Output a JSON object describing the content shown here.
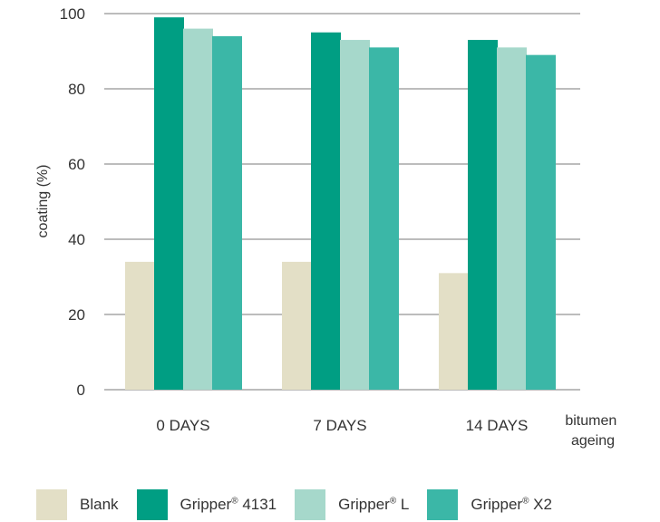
{
  "chart_data": {
    "type": "bar",
    "categories": [
      "0 DAYS",
      "7 DAYS",
      "14 DAYS"
    ],
    "series": [
      {
        "name": "Blank",
        "color": "#e3dfc6",
        "values": [
          34,
          34,
          31
        ]
      },
      {
        "name": "Gripper® 4131",
        "color": "#009e83",
        "values": [
          99,
          95,
          93
        ]
      },
      {
        "name": "Gripper® L",
        "color": "#a6d8cb",
        "values": [
          96,
          93,
          91
        ]
      },
      {
        "name": "Gripper® X2",
        "color": "#3bb7a7",
        "values": [
          94,
          91,
          89
        ]
      }
    ],
    "ylabel": "coating (%)",
    "xlabel": "bitumen ageing",
    "xlabel_lines": [
      "bitumen",
      "ageing"
    ],
    "ylim": [
      0,
      100
    ],
    "yticks": [
      "0",
      "20",
      "40",
      "60",
      "80",
      "100"
    ],
    "grid": true,
    "legend_position": "bottom",
    "legend": [
      {
        "text": "Blank",
        "sup": "",
        "rest": ""
      },
      {
        "text": "Gripper",
        "sup": "®",
        "rest": " 4131"
      },
      {
        "text": "Gripper",
        "sup": "®",
        "rest": " L"
      },
      {
        "text": "Gripper",
        "sup": "®",
        "rest": " X2"
      }
    ]
  }
}
